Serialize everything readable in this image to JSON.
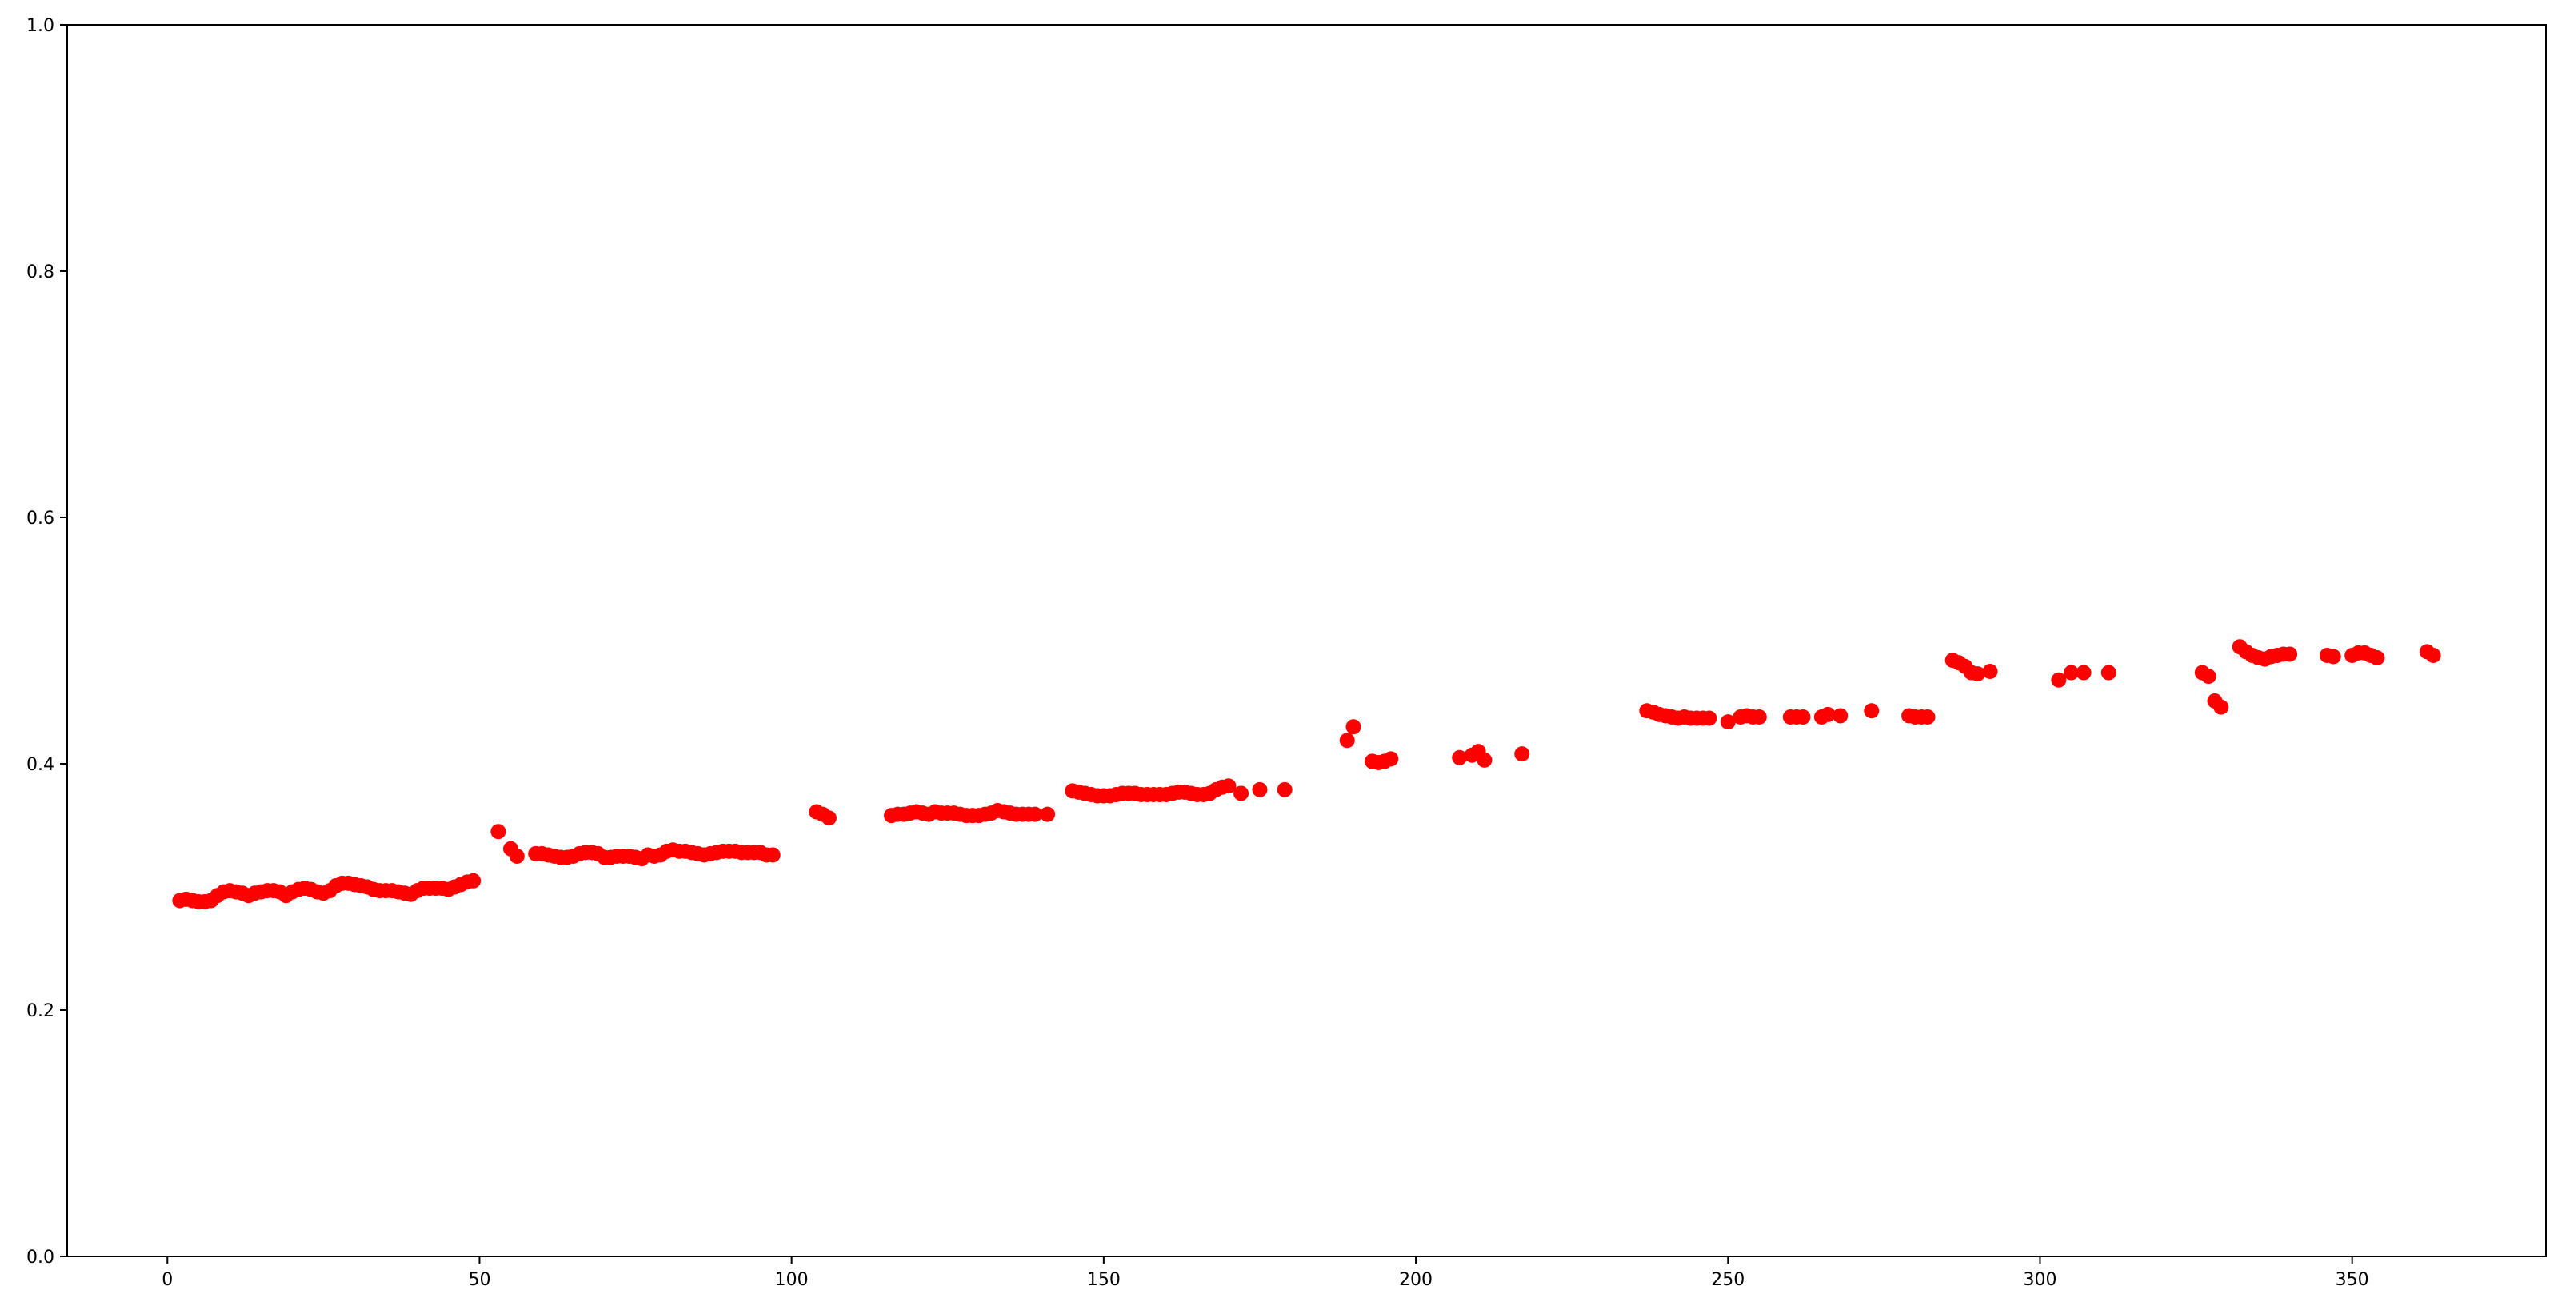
{
  "chart_data": {
    "type": "scatter",
    "title": "",
    "xlabel": "",
    "ylabel": "",
    "xlim": [
      -16.05,
      381.05
    ],
    "ylim": [
      0,
      1
    ],
    "xticks": [
      0,
      50,
      100,
      150,
      200,
      250,
      300,
      350
    ],
    "xtick_labels": [
      "0",
      "50",
      "100",
      "150",
      "200",
      "250",
      "300",
      "350"
    ],
    "yticks": [
      0,
      0.2,
      0.4,
      0.6,
      0.8,
      1.0
    ],
    "ytick_labels": [
      "0.0",
      "0.2",
      "0.4",
      "0.6",
      "0.8",
      "1.0"
    ],
    "grid": false,
    "marker_color": "#ff0000",
    "series": [
      {
        "x": [
          2,
          3,
          4,
          5,
          6,
          7,
          8,
          9,
          10,
          11,
          12,
          13,
          14,
          15,
          16,
          17,
          18,
          19,
          20,
          21,
          22,
          23,
          24,
          25,
          26,
          27,
          28,
          29,
          30,
          31,
          32,
          33,
          34,
          35,
          36,
          37,
          38,
          39,
          40,
          41,
          42,
          43,
          44,
          45,
          46,
          47,
          48,
          49,
          53,
          55,
          56,
          59,
          60,
          61,
          62,
          63,
          64,
          65,
          66,
          67,
          68,
          69,
          70,
          71,
          72,
          73,
          74,
          75,
          76,
          77,
          78,
          79,
          80,
          81,
          82,
          83,
          84,
          85,
          86,
          87,
          88,
          89,
          90,
          91,
          92,
          93,
          94,
          95,
          96,
          97,
          104,
          105,
          106,
          116,
          117,
          118,
          119,
          120,
          121,
          122,
          123,
          124,
          125,
          126,
          127,
          128,
          129,
          130,
          131,
          132,
          133,
          134,
          135,
          136,
          137,
          138,
          139,
          141,
          145,
          146,
          147,
          148,
          149,
          150,
          151,
          152,
          153,
          154,
          155,
          156,
          157,
          158,
          159,
          160,
          161,
          162,
          163,
          164,
          165,
          166,
          167,
          168,
          169,
          170,
          172,
          175,
          179,
          189,
          190,
          193,
          194,
          195,
          196,
          207,
          209,
          210,
          211,
          217,
          237,
          238,
          239,
          240,
          241,
          242,
          243,
          244,
          245,
          246,
          247,
          250,
          252,
          253,
          254,
          255,
          260,
          261,
          262,
          265,
          266,
          268,
          273,
          279,
          280,
          281,
          282,
          286,
          287,
          288,
          289,
          290,
          292,
          303,
          305,
          307,
          311,
          326,
          327,
          328,
          329,
          332,
          333,
          334,
          335,
          336,
          337,
          338,
          339,
          340,
          346,
          347,
          350,
          351,
          352,
          353,
          354,
          362,
          363
        ],
        "y": [
          0.289,
          0.29,
          0.289,
          0.288,
          0.288,
          0.289,
          0.293,
          0.296,
          0.297,
          0.296,
          0.295,
          0.293,
          0.295,
          0.296,
          0.297,
          0.297,
          0.296,
          0.293,
          0.296,
          0.298,
          0.299,
          0.298,
          0.296,
          0.295,
          0.297,
          0.301,
          0.303,
          0.303,
          0.302,
          0.301,
          0.3,
          0.298,
          0.297,
          0.297,
          0.297,
          0.296,
          0.295,
          0.294,
          0.297,
          0.299,
          0.299,
          0.299,
          0.299,
          0.298,
          0.3,
          0.302,
          0.304,
          0.305,
          0.345,
          0.331,
          0.325,
          0.327,
          0.327,
          0.326,
          0.325,
          0.324,
          0.324,
          0.325,
          0.327,
          0.328,
          0.328,
          0.327,
          0.324,
          0.324,
          0.325,
          0.325,
          0.325,
          0.324,
          0.323,
          0.326,
          0.325,
          0.326,
          0.329,
          0.33,
          0.329,
          0.329,
          0.328,
          0.327,
          0.326,
          0.327,
          0.328,
          0.329,
          0.329,
          0.329,
          0.328,
          0.328,
          0.328,
          0.328,
          0.326,
          0.326,
          0.361,
          0.359,
          0.356,
          0.358,
          0.359,
          0.359,
          0.36,
          0.361,
          0.36,
          0.359,
          0.361,
          0.36,
          0.36,
          0.36,
          0.359,
          0.358,
          0.358,
          0.358,
          0.359,
          0.36,
          0.362,
          0.361,
          0.36,
          0.359,
          0.359,
          0.359,
          0.359,
          0.359,
          0.378,
          0.377,
          0.376,
          0.375,
          0.374,
          0.374,
          0.374,
          0.375,
          0.376,
          0.376,
          0.376,
          0.375,
          0.375,
          0.375,
          0.375,
          0.375,
          0.376,
          0.377,
          0.377,
          0.376,
          0.375,
          0.375,
          0.376,
          0.379,
          0.381,
          0.382,
          0.376,
          0.379,
          0.379,
          0.419,
          0.43,
          0.402,
          0.401,
          0.402,
          0.404,
          0.405,
          0.407,
          0.41,
          0.403,
          0.408,
          0.443,
          0.442,
          0.44,
          0.439,
          0.438,
          0.437,
          0.438,
          0.437,
          0.437,
          0.437,
          0.437,
          0.434,
          0.438,
          0.439,
          0.438,
          0.438,
          0.438,
          0.438,
          0.438,
          0.438,
          0.44,
          0.439,
          0.443,
          0.439,
          0.438,
          0.438,
          0.438,
          0.484,
          0.482,
          0.479,
          0.474,
          0.473,
          0.475,
          0.468,
          0.474,
          0.474,
          0.474,
          0.474,
          0.471,
          0.451,
          0.446,
          0.495,
          0.491,
          0.488,
          0.486,
          0.485,
          0.487,
          0.488,
          0.489,
          0.489,
          0.488,
          0.487,
          0.488,
          0.49,
          0.49,
          0.488,
          0.486,
          0.491,
          0.488
        ]
      }
    ]
  }
}
